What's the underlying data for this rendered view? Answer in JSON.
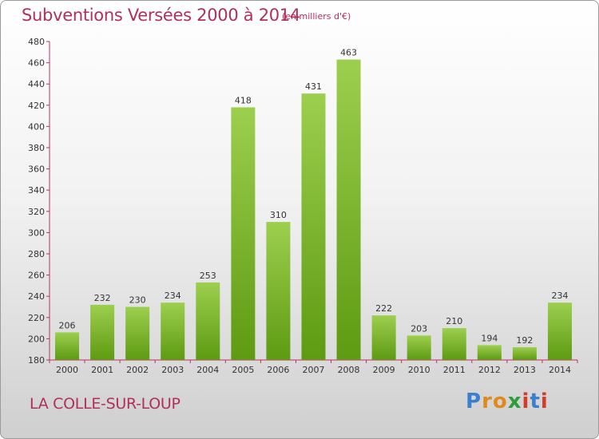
{
  "header": {
    "title": "Subventions Versées 2000 à 2014",
    "subtitle": "(en milliers d'€)"
  },
  "footer": {
    "commune": "LA COLLE-SUR-LOUP",
    "logo": "Proxiti"
  },
  "colors": {
    "title": "#b0305a",
    "bar_top": "#9ccf4e",
    "bar_bottom": "#5e9a12",
    "axis": "#c03060"
  },
  "chart_data": {
    "type": "bar",
    "categories": [
      "2000",
      "2001",
      "2002",
      "2003",
      "2004",
      "2005",
      "2006",
      "2007",
      "2008",
      "2009",
      "2010",
      "2011",
      "2012",
      "2013",
      "2014"
    ],
    "values": [
      206,
      232,
      230,
      234,
      253,
      418,
      310,
      431,
      463,
      222,
      203,
      210,
      194,
      192,
      234
    ],
    "ylim": [
      180,
      480
    ],
    "yticks": [
      180,
      200,
      220,
      240,
      260,
      280,
      300,
      320,
      340,
      360,
      380,
      400,
      420,
      440,
      460,
      480
    ],
    "grid": false
  }
}
